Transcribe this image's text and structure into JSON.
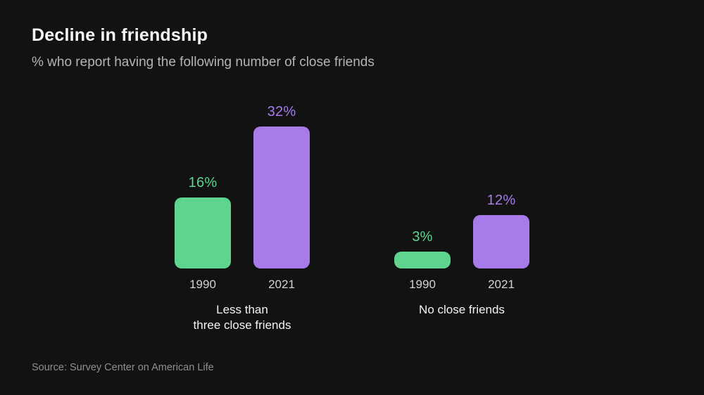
{
  "header": {
    "title": "Decline in friendship",
    "subtitle": "% who report having the following number of close friends"
  },
  "chart_data": {
    "type": "bar",
    "title": "Decline in friendship",
    "subtitle": "% who report having the following number of close friends",
    "categories": [
      "Less than\nthree close friends",
      "No close friends"
    ],
    "series": [
      {
        "name": "1990",
        "values": [
          16,
          3
        ],
        "labels": [
          "16%",
          "3%"
        ],
        "color": "#5ed48f"
      },
      {
        "name": "2021",
        "values": [
          32,
          12
        ],
        "labels": [
          "32%",
          "12%"
        ],
        "color": "#a77ce8"
      }
    ],
    "ylim": [
      0,
      32
    ],
    "grid": false,
    "legend": "none",
    "value_label_position": "above-bar",
    "background": "#121212"
  },
  "footer": {
    "source": "Source: Survey Center on American Life"
  }
}
